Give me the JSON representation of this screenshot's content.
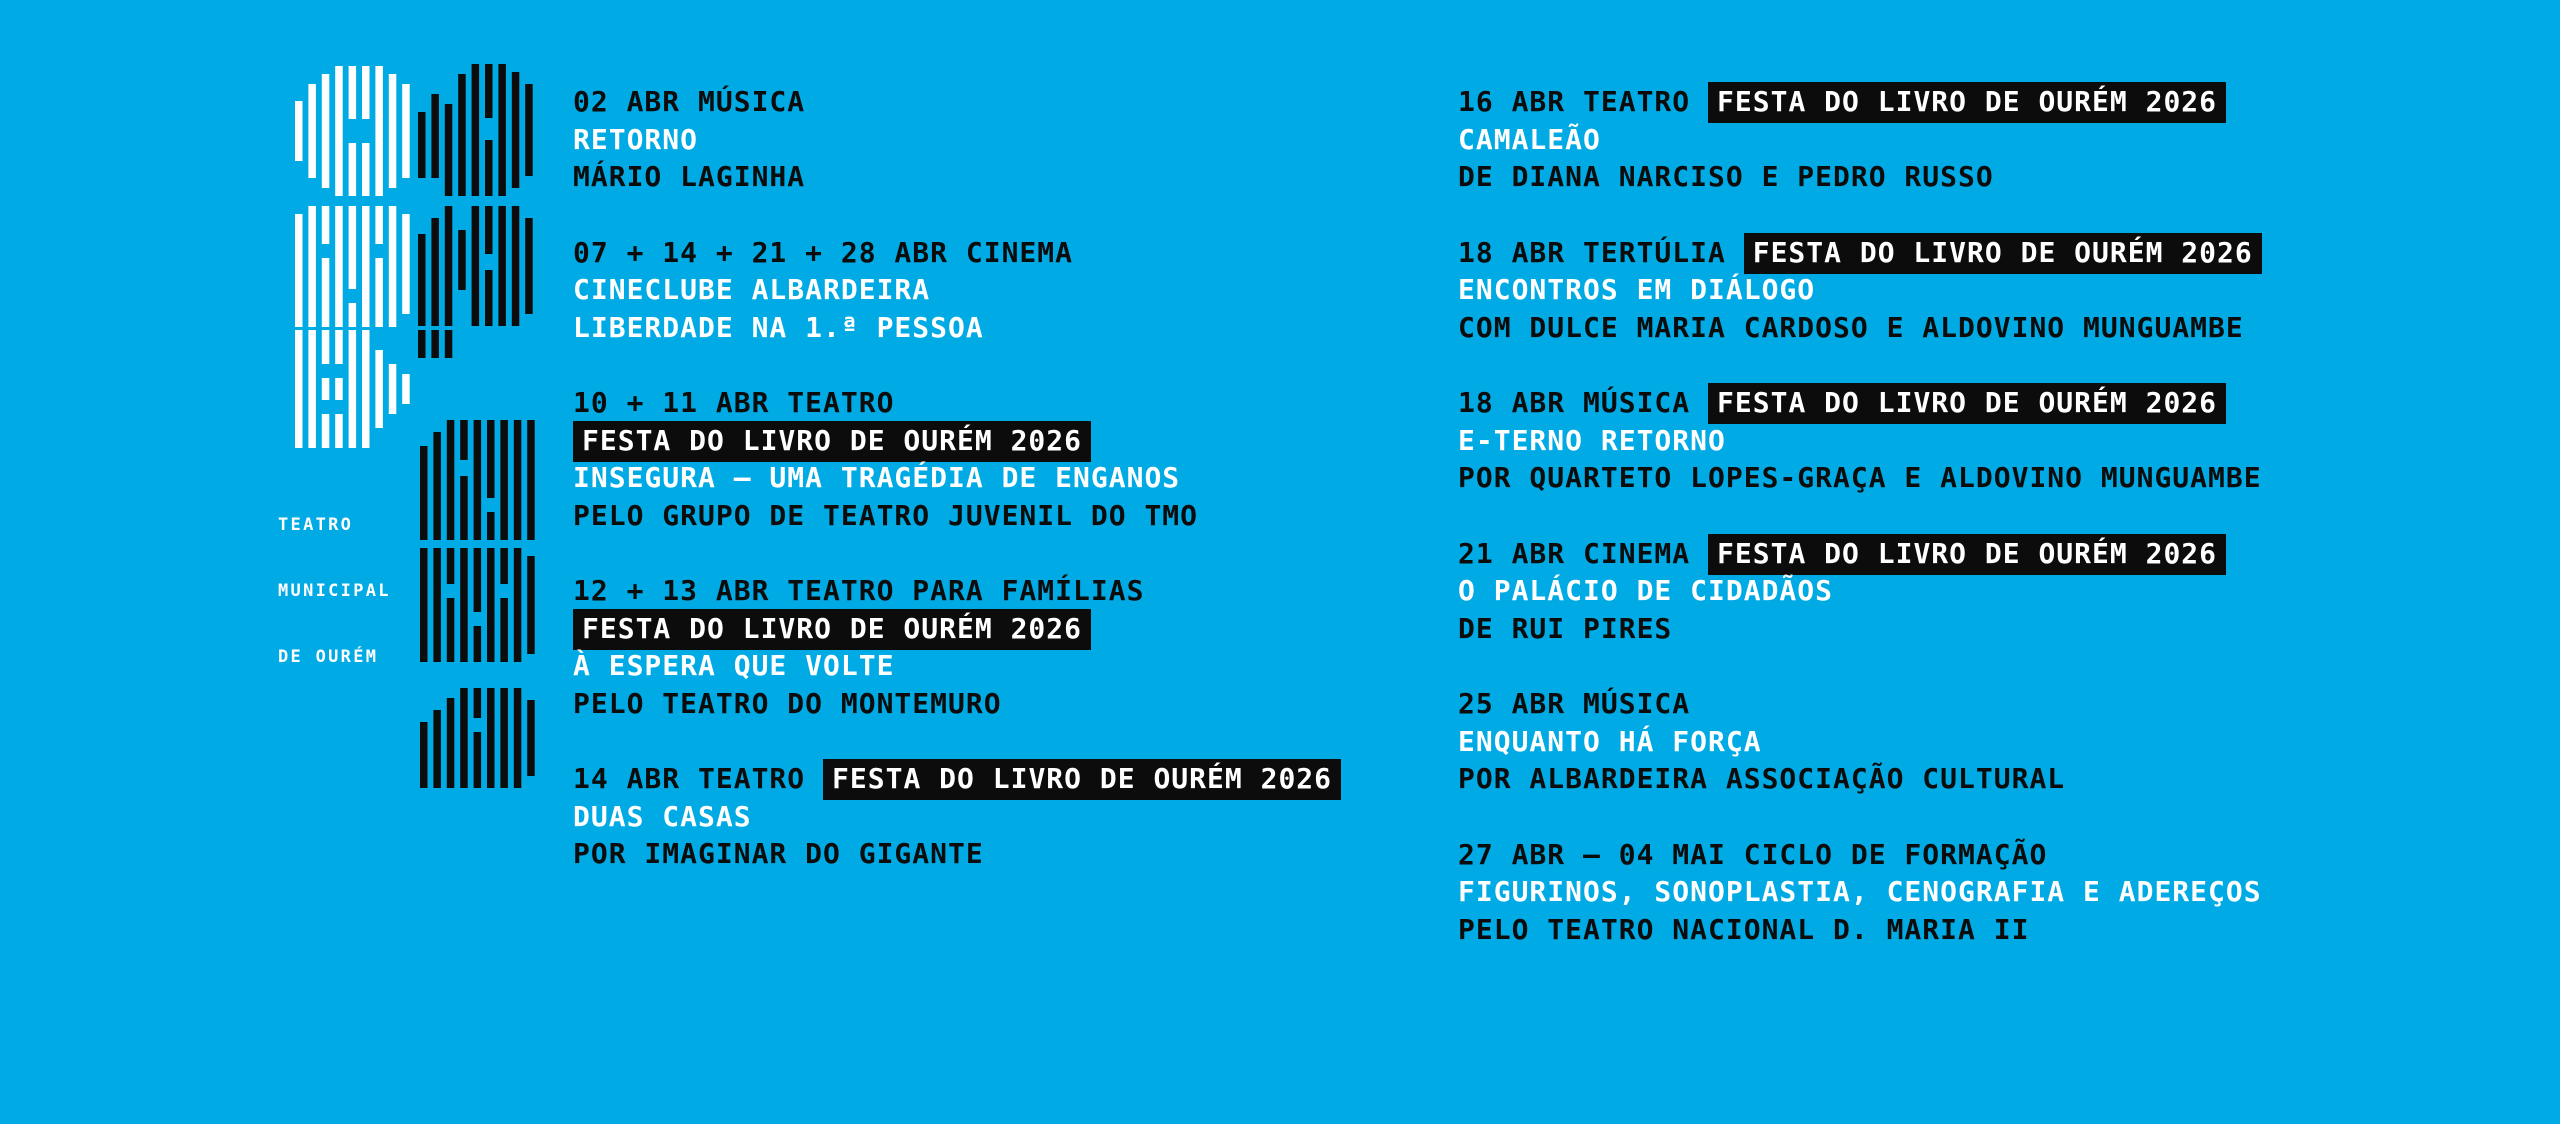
{
  "page": {
    "background_color": "#00AAE4",
    "ink_color": "#0C0C0C",
    "paper_color": "#FFFFFF"
  },
  "brand": {
    "logo": "striped-bars-season-mark",
    "wordmark": [
      "TEATRO",
      "MUNICIPAL",
      "DE OURÉM"
    ]
  },
  "festival_tag": "FESTA DO LIVRO DE OURÉM 2026",
  "columns": [
    {
      "events": [
        {
          "lines": [
            [
              {
                "text": "02 ABR MÚSICA",
                "style": "dark"
              }
            ],
            [
              {
                "text": "RETORNO",
                "style": "light"
              }
            ],
            [
              {
                "text": "MÁRIO LAGINHA",
                "style": "dark"
              }
            ]
          ]
        },
        {
          "lines": [
            [
              {
                "text": "07 + 14 + 21 + 28 ABR CINEMA",
                "style": "dark"
              }
            ],
            [
              {
                "text": "CINECLUBE ALBARDEIRA",
                "style": "light"
              }
            ],
            [
              {
                "text": "LIBERDADE NA 1.ª PESSOA",
                "style": "light"
              }
            ]
          ]
        },
        {
          "lines": [
            [
              {
                "text": "10 + 11 ABR TEATRO",
                "style": "dark"
              }
            ],
            [
              {
                "text": "FESTA DO LIVRO DE OURÉM 2026",
                "style": "tag"
              }
            ],
            [
              {
                "text": "INSEGURA — UMA TRAGÉDIA DE ENGANOS",
                "style": "light"
              }
            ],
            [
              {
                "text": "PELO GRUPO DE TEATRO JUVENIL DO TMO",
                "style": "dark"
              }
            ]
          ]
        },
        {
          "lines": [
            [
              {
                "text": "12 + 13 ABR TEATRO PARA FAMÍLIAS",
                "style": "dark"
              }
            ],
            [
              {
                "text": "FESTA DO LIVRO DE OURÉM 2026",
                "style": "tag"
              }
            ],
            [
              {
                "text": "À ESPERA QUE VOLTE",
                "style": "light"
              }
            ],
            [
              {
                "text": "PELO TEATRO DO MONTEMURO",
                "style": "dark"
              }
            ]
          ]
        },
        {
          "lines": [
            [
              {
                "text": "14 ABR TEATRO ",
                "style": "dark"
              },
              {
                "text": "FESTA DO LIVRO DE OURÉM 2026",
                "style": "tag"
              }
            ],
            [
              {
                "text": "DUAS CASAS",
                "style": "light"
              }
            ],
            [
              {
                "text": "POR IMAGINAR DO GIGANTE",
                "style": "dark"
              }
            ]
          ]
        }
      ]
    },
    {
      "events": [
        {
          "lines": [
            [
              {
                "text": "16 ABR TEATRO ",
                "style": "dark"
              },
              {
                "text": "FESTA DO LIVRO DE OURÉM 2026",
                "style": "tag"
              }
            ],
            [
              {
                "text": "CAMALEÃO",
                "style": "light"
              }
            ],
            [
              {
                "text": "DE DIANA NARCISO E PEDRO RUSSO",
                "style": "dark"
              }
            ]
          ]
        },
        {
          "lines": [
            [
              {
                "text": "18 ABR TERTÚLIA ",
                "style": "dark"
              },
              {
                "text": "FESTA DO LIVRO DE OURÉM 2026",
                "style": "tag"
              }
            ],
            [
              {
                "text": "ENCONTROS EM DIÁLOGO",
                "style": "light"
              }
            ],
            [
              {
                "text": "COM DULCE MARIA CARDOSO E ALDOVINO MUNGUAMBE",
                "style": "dark"
              }
            ]
          ]
        },
        {
          "lines": [
            [
              {
                "text": "18 ABR MÚSICA ",
                "style": "dark"
              },
              {
                "text": "FESTA DO LIVRO DE OURÉM 2026",
                "style": "tag"
              }
            ],
            [
              {
                "text": "E-TERNO RETORNO",
                "style": "light"
              }
            ],
            [
              {
                "text": "POR QUARTETO LOPES-GRAÇA E ALDOVINO MUNGUAMBE",
                "style": "dark"
              }
            ]
          ]
        },
        {
          "lines": [
            [
              {
                "text": "21 ABR CINEMA ",
                "style": "dark"
              },
              {
                "text": "FESTA DO LIVRO DE OURÉM 2026",
                "style": "tag"
              }
            ],
            [
              {
                "text": "O PALÁCIO DE CIDADÃOS",
                "style": "light"
              }
            ],
            [
              {
                "text": "DE RUI PIRES",
                "style": "dark"
              }
            ]
          ]
        },
        {
          "lines": [
            [
              {
                "text": "25 ABR MÚSICA",
                "style": "dark"
              }
            ],
            [
              {
                "text": "ENQUANTO HÁ FORÇA",
                "style": "light"
              }
            ],
            [
              {
                "text": "POR ALBARDEIRA ASSOCIAÇÃO CULTURAL",
                "style": "dark"
              }
            ]
          ]
        },
        {
          "lines": [
            [
              {
                "text": "27 ABR – 04 MAI CICLO DE FORMAÇÃO",
                "style": "dark"
              }
            ],
            [
              {
                "text": "FIGURINOS, SONOPLASTIA, CENOGRAFIA E ADEREÇOS",
                "style": "light"
              }
            ],
            [
              {
                "text": "PELO TEATRO NACIONAL D. MARIA II",
                "style": "dark"
              }
            ]
          ]
        }
      ]
    }
  ]
}
